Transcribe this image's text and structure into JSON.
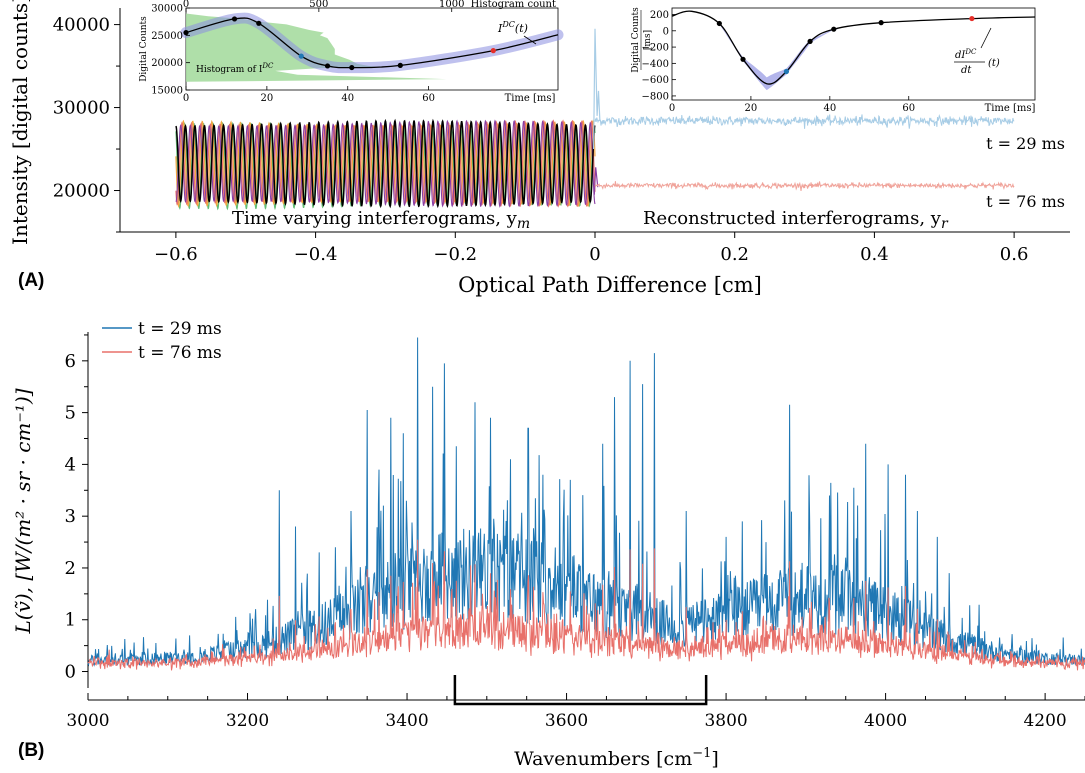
{
  "figure": {
    "panel_a_label": "(A)",
    "panel_b_label": "(B)"
  },
  "colors": {
    "line29": "#1f77b4",
    "line76": "#e8706a",
    "light29": "#a8cde6",
    "light76": "#f0a39a",
    "black": "#000000",
    "orange": "#f2a640",
    "purple": "#8a3ea3",
    "green": "#63bd74",
    "hist": "#a6dba0",
    "band": "#8a8ee0"
  },
  "chart_data": [
    {
      "id": "A",
      "type": "line",
      "xlabel": "Optical Path Difference [cm]",
      "ylabel": "Intensity [digital counts]",
      "xlim": [
        -0.68,
        0.68
      ],
      "ylim": [
        15000,
        42000
      ],
      "xticks": [
        -0.6,
        -0.4,
        -0.2,
        0,
        0.2,
        0.4,
        0.6
      ],
      "xtick_labels": [
        "−0.6",
        "−0.4",
        "−0.2",
        "0",
        "0.2",
        "0.4",
        "0.6"
      ],
      "yticks": [
        20000,
        30000,
        40000
      ],
      "ytick_labels": [
        "20000",
        "30000",
        "40000"
      ],
      "annotations": {
        "left": "Time varying interferograms, y",
        "left_sub": "m",
        "right": "Reconstructed interferograms, y",
        "right_sub": "r",
        "t29": "t = 29 ms",
        "t76": "t = 76 ms"
      },
      "series": [
        {
          "name": "t = 29 ms",
          "range": [
            0,
            0.6
          ],
          "level": 28400,
          "noise": 280,
          "color_key": "light29"
        },
        {
          "name": "t = 76 ms",
          "range": [
            0,
            0.6
          ],
          "level": 20600,
          "noise": 160,
          "color_key": "light76"
        }
      ],
      "interferogram": {
        "range": [
          -0.6,
          0
        ],
        "min": 18000,
        "max": 28500,
        "cycles": 44
      }
    },
    {
      "id": "inset-DC",
      "type": "line",
      "xlabel": "Time [ms]",
      "ylabel": "Digital Counts",
      "xlim": [
        0,
        92
      ],
      "ylim": [
        15000,
        30000
      ],
      "xticks": [
        0,
        20,
        40,
        60
      ],
      "yticks": [
        15000,
        20000,
        25000,
        30000
      ],
      "top_xticks": [
        0,
        500,
        1000
      ],
      "top_xlabel": "Histogram count",
      "hist_label": "Histogram of I",
      "hist_label_sup": "DC",
      "curve_label": "I",
      "curve_label_sup": "DC",
      "curve_label_tail": "(t)",
      "curve_points": {
        "x": [
          0,
          12,
          18,
          28.5,
          35,
          41,
          53,
          76,
          92
        ],
        "y": [
          25500,
          28000,
          27200,
          21200,
          19400,
          19100,
          19500,
          22200,
          25100
        ]
      },
      "markers": [
        {
          "x": 0,
          "y": 25500,
          "color_key": "black"
        },
        {
          "x": 12,
          "y": 28000,
          "color_key": "black"
        },
        {
          "x": 18,
          "y": 27200,
          "color_key": "black"
        },
        {
          "x": 28.5,
          "y": 21200,
          "color_key": "line29"
        },
        {
          "x": 35,
          "y": 19400,
          "color_key": "black"
        },
        {
          "x": 41,
          "y": 19100,
          "color_key": "black"
        },
        {
          "x": 53,
          "y": 19500,
          "color_key": "black"
        },
        {
          "x": 76,
          "y": 22200,
          "color_key": "red"
        }
      ]
    },
    {
      "id": "inset-deriv",
      "type": "line",
      "xlabel": "Time [ms]",
      "ylabel_top": "Digital Counts",
      "ylabel_bottom": "[ms]",
      "xlim": [
        0,
        92
      ],
      "ylim": [
        -850,
        280
      ],
      "xticks": [
        0,
        20,
        40,
        60
      ],
      "yticks": [
        200,
        0,
        -200,
        -400,
        -600,
        -800
      ],
      "curve_label_num": "dI",
      "curve_label_num_sup": "DC",
      "curve_label_den": "dt",
      "curve_label_tail": "(t)",
      "curve_points": {
        "x": [
          0,
          5,
          12,
          18,
          24,
          29,
          35,
          41,
          53,
          76,
          92
        ],
        "y": [
          180,
          240,
          90,
          -350,
          -650,
          -500,
          -130,
          20,
          100,
          150,
          170
        ]
      },
      "markers": [
        {
          "x": 12,
          "y": 90,
          "color_key": "black"
        },
        {
          "x": 18,
          "y": -350,
          "color_key": "black"
        },
        {
          "x": 29,
          "y": -500,
          "color_key": "line29"
        },
        {
          "x": 35,
          "y": -130,
          "color_key": "black"
        },
        {
          "x": 41,
          "y": 20,
          "color_key": "black"
        },
        {
          "x": 53,
          "y": 100,
          "color_key": "black"
        },
        {
          "x": 76,
          "y": 150,
          "color_key": "red"
        }
      ]
    },
    {
      "id": "B",
      "type": "line",
      "xlabel": "Wavenumbers [cm",
      "xlabel_sup": "−1",
      "xlabel_tail": "]",
      "ylabel": "L(ṽ), [W/(m² · sr · cm⁻¹)]",
      "xlim": [
        3000,
        4250
      ],
      "ylim": [
        -0.55,
        6.75
      ],
      "xticks": [
        3000,
        3200,
        3400,
        3600,
        3800,
        4000,
        4200
      ],
      "yticks": [
        0,
        1,
        2,
        3,
        4,
        5,
        6
      ],
      "legend_position": "top-left",
      "bracket": [
        3460,
        3775
      ],
      "series": [
        {
          "name": "t = 29 ms",
          "color_key": "line29",
          "peak_scale": 1.0
        },
        {
          "name": "t = 76 ms",
          "color_key": "line76",
          "peak_scale": 0.38
        }
      ],
      "major_peaks": [
        {
          "x": 3330,
          "y": 3.1
        },
        {
          "x": 3350,
          "y": 5.05
        },
        {
          "x": 3365,
          "y": 3.9
        },
        {
          "x": 3380,
          "y": 4.9
        },
        {
          "x": 3395,
          "y": 4.6
        },
        {
          "x": 3413,
          "y": 6.45
        },
        {
          "x": 3432,
          "y": 5.5
        },
        {
          "x": 3447,
          "y": 5.95
        },
        {
          "x": 3462,
          "y": 4.35
        },
        {
          "x": 3485,
          "y": 5.2
        },
        {
          "x": 3505,
          "y": 4.9
        },
        {
          "x": 3530,
          "y": 4.1
        },
        {
          "x": 3552,
          "y": 4.7
        },
        {
          "x": 3570,
          "y": 3.8
        },
        {
          "x": 3605,
          "y": 3.7
        },
        {
          "x": 3645,
          "y": 4.4
        },
        {
          "x": 3660,
          "y": 5.3
        },
        {
          "x": 3680,
          "y": 6.0
        },
        {
          "x": 3695,
          "y": 5.55
        },
        {
          "x": 3710,
          "y": 6.15
        },
        {
          "x": 3750,
          "y": 3.1
        },
        {
          "x": 3880,
          "y": 5.15
        },
        {
          "x": 3905,
          "y": 3.0
        },
        {
          "x": 3930,
          "y": 3.4
        },
        {
          "x": 3960,
          "y": 3.55
        },
        {
          "x": 3975,
          "y": 4.4
        },
        {
          "x": 4003,
          "y": 4.0
        },
        {
          "x": 4025,
          "y": 3.8
        },
        {
          "x": 4040,
          "y": 3.1
        },
        {
          "x": 3240,
          "y": 3.5
        },
        {
          "x": 3260,
          "y": 2.8
        },
        {
          "x": 3290,
          "y": 2.3
        },
        {
          "x": 3310,
          "y": 2.4
        },
        {
          "x": 3800,
          "y": 2.6
        },
        {
          "x": 3820,
          "y": 2.9
        },
        {
          "x": 3850,
          "y": 2.5
        },
        {
          "x": 3950,
          "y": 2.2
        },
        {
          "x": 4065,
          "y": 2.6
        },
        {
          "x": 4080,
          "y": 1.9
        }
      ]
    }
  ]
}
